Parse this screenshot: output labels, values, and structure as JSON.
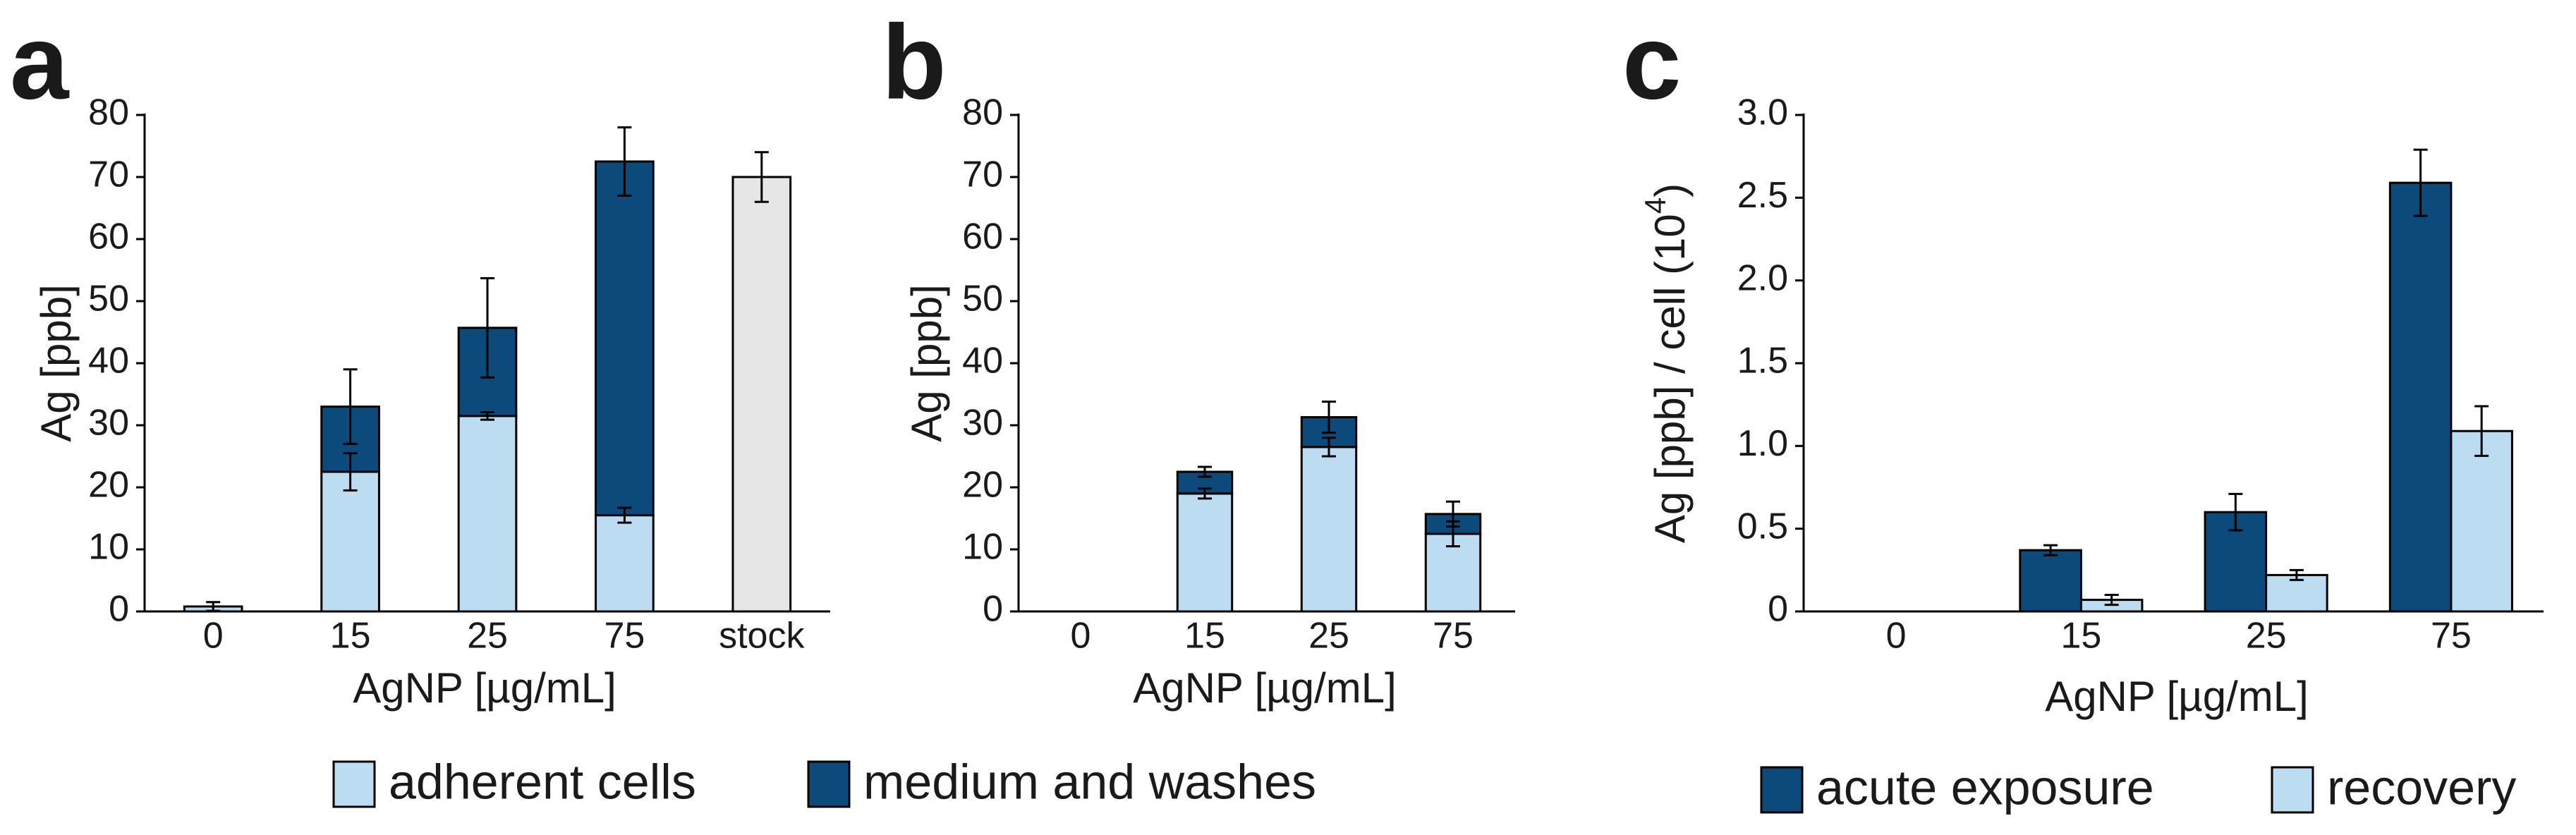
{
  "chart_data": [
    {
      "type": "stacked_bar",
      "panel_label": "a",
      "y_label": "Ag [ppb]",
      "x_label": "AgNP [µg/mL]",
      "categories": [
        "0",
        "15",
        "25",
        "75",
        "stock"
      ],
      "ylim": [
        0,
        80
      ],
      "yticks": [
        0,
        10,
        20,
        30,
        40,
        50,
        60,
        70,
        80
      ],
      "series": [
        {
          "name": "adherent cells",
          "color": "#bcdcf2",
          "values": [
            0.8,
            22.5,
            31.5,
            15.5,
            null
          ],
          "errors": [
            0.7,
            3,
            0.6,
            1.2,
            null
          ]
        },
        {
          "name": "medium and washes",
          "color": "#0b4a7a",
          "values": [
            null,
            10.5,
            14.2,
            57,
            null
          ],
          "errors": [
            null,
            6,
            8,
            5.5,
            null
          ]
        },
        {
          "color": "#e6e6e6",
          "values": [
            null,
            null,
            null,
            null,
            70
          ],
          "errors": [
            null,
            null,
            null,
            null,
            4
          ]
        }
      ]
    },
    {
      "type": "stacked_bar",
      "panel_label": "b",
      "y_label": "Ag [ppb]",
      "x_label": "AgNP [µg/mL]",
      "categories": [
        "0",
        "15",
        "25",
        "75"
      ],
      "ylim": [
        0,
        80
      ],
      "yticks": [
        0,
        10,
        20,
        30,
        40,
        50,
        60,
        70,
        80
      ],
      "series": [
        {
          "color": "#bcdcf2",
          "values": [
            0,
            19,
            26.5,
            12.5
          ],
          "errors": [
            0,
            0.8,
            1.5,
            2
          ]
        },
        {
          "color": "#0b4a7a",
          "values": [
            0,
            3.5,
            4.8,
            3.2
          ],
          "errors": [
            0,
            0.8,
            2.5,
            2
          ]
        }
      ]
    },
    {
      "type": "bar",
      "panel_label": "c",
      "y_label": "Ag [ppb] / cell (10",
      "y_label_exponent": "4",
      "y_label_end": ")",
      "x_label": "AgNP [µg/mL]",
      "categories": [
        "0",
        "15",
        "25",
        "75"
      ],
      "ylim": [
        0,
        3
      ],
      "yticks": [
        0,
        0.5,
        {
          "value": 1,
          "label": "1.0"
        },
        1.5,
        {
          "value": 2,
          "label": "2.0"
        },
        2.5,
        {
          "value": 3,
          "label": "3.0"
        }
      ],
      "series": [
        {
          "name": "acute exposure",
          "color": "#0b4a7a",
          "values": [
            0,
            0.37,
            0.6,
            2.59
          ],
          "errors": [
            0,
            0.03,
            0.11,
            0.2
          ]
        },
        {
          "name": "recovery",
          "color": "#bcdcf2",
          "values": [
            0,
            0.07,
            0.22,
            1.09
          ],
          "errors": [
            0,
            0.03,
            0.03,
            0.15
          ]
        }
      ]
    }
  ]
}
